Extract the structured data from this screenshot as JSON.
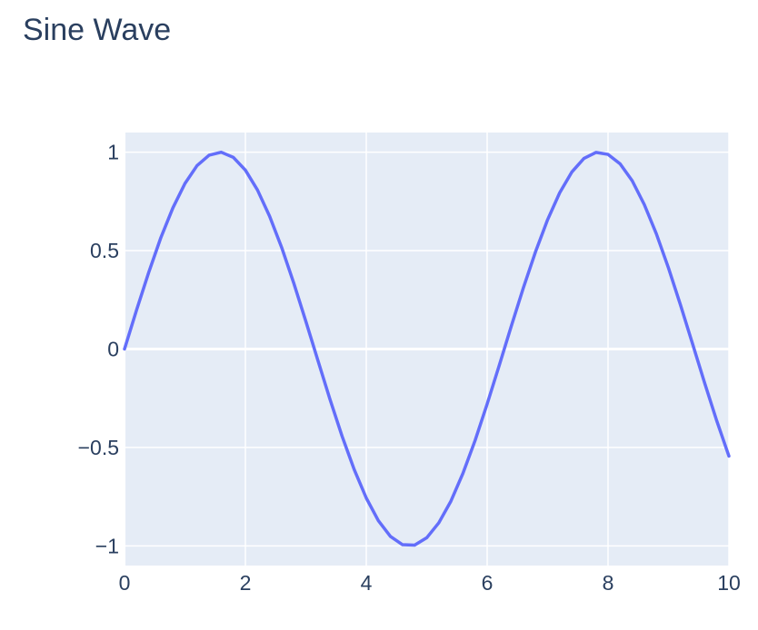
{
  "chart_data": {
    "type": "line",
    "title": "Sine Wave",
    "xlabel": "",
    "ylabel": "",
    "xlim": [
      0,
      10
    ],
    "ylim": [
      -1.1,
      1.1
    ],
    "grid": true,
    "x_ticks": [
      0,
      2,
      4,
      6,
      8,
      10
    ],
    "x_tick_labels": [
      "0",
      "2",
      "4",
      "6",
      "8",
      "10"
    ],
    "y_ticks": [
      -1,
      -0.5,
      0,
      0.5,
      1
    ],
    "y_tick_labels": [
      "−1",
      "−0.5",
      "0",
      "0.5",
      "1"
    ],
    "colors": {
      "line": "#636efa",
      "plot_bg": "#e5ecf6",
      "grid": "#ffffff",
      "text": "#2a3f5f"
    },
    "series": [
      {
        "x": [
          0,
          0.2,
          0.4,
          0.6,
          0.8,
          1.0,
          1.2,
          1.4,
          1.6,
          1.8,
          2.0,
          2.2,
          2.4,
          2.6,
          2.8,
          3.0,
          3.2,
          3.4,
          3.6,
          3.8,
          4.0,
          4.2,
          4.4,
          4.6,
          4.8,
          5.0,
          5.2,
          5.4,
          5.6,
          5.8,
          6.0,
          6.2,
          6.4,
          6.6,
          6.8,
          7.0,
          7.2,
          7.4,
          7.6,
          7.8,
          8.0,
          8.2,
          8.4,
          8.6,
          8.8,
          9.0,
          9.2,
          9.4,
          9.6,
          9.8,
          10.0
        ],
        "y": [
          0,
          0.199,
          0.389,
          0.565,
          0.717,
          0.841,
          0.932,
          0.985,
          1.0,
          0.974,
          0.909,
          0.808,
          0.675,
          0.516,
          0.335,
          0.141,
          -0.058,
          -0.256,
          -0.443,
          -0.612,
          -0.757,
          -0.872,
          -0.952,
          -0.994,
          -0.996,
          -0.959,
          -0.883,
          -0.773,
          -0.631,
          -0.465,
          -0.279,
          -0.083,
          0.117,
          0.312,
          0.494,
          0.657,
          0.794,
          0.899,
          0.968,
          0.999,
          0.989,
          0.941,
          0.855,
          0.734,
          0.585,
          0.412,
          0.223,
          0.025,
          -0.174,
          -0.366,
          -0.544
        ]
      }
    ]
  }
}
